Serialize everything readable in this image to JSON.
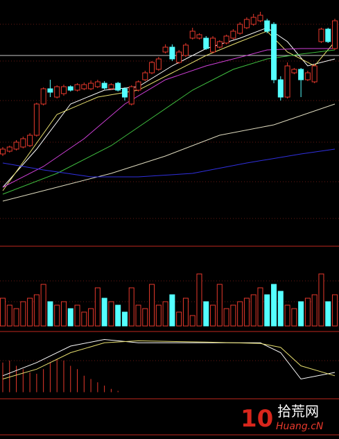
{
  "chart_data": {
    "type": "candlestick",
    "ylim": [
      0,
      360
    ],
    "up_color": "#e8392c",
    "down_color": "#54ffff",
    "open": [
      138,
      142,
      145,
      148,
      150,
      165,
      210,
      232,
      220,
      225,
      235,
      230,
      232,
      232,
      235,
      240,
      232,
      240,
      232,
      210,
      230,
      245,
      255,
      260,
      285,
      292,
      270,
      280,
      305,
      305,
      305,
      285,
      292,
      298,
      305,
      312,
      320,
      325,
      330,
      330,
      325,
      245,
      220,
      255,
      260,
      245,
      242,
      300,
      318,
      290
    ],
    "close": [
      145,
      148,
      155,
      160,
      165,
      210,
      232,
      227,
      235,
      235,
      230,
      238,
      238,
      240,
      242,
      233,
      238,
      230,
      220,
      235,
      242,
      255,
      270,
      275,
      292,
      275,
      285,
      295,
      315,
      310,
      290,
      305,
      300,
      308,
      315,
      325,
      332,
      335,
      338,
      315,
      245,
      220,
      265,
      260,
      245,
      255,
      265,
      318,
      300,
      330
    ],
    "high": [
      148,
      150,
      158,
      163,
      168,
      212,
      234,
      245,
      237,
      238,
      237,
      240,
      241,
      244,
      245,
      243,
      240,
      242,
      234,
      237,
      244,
      258,
      272,
      278,
      296,
      296,
      288,
      298,
      320,
      312,
      308,
      308,
      302,
      310,
      318,
      328,
      335,
      340,
      343,
      333,
      328,
      250,
      270,
      262,
      262,
      258,
      268,
      320,
      320,
      333
    ],
    "low": [
      135,
      140,
      143,
      146,
      148,
      163,
      208,
      220,
      218,
      222,
      228,
      228,
      230,
      230,
      233,
      231,
      230,
      228,
      215,
      208,
      228,
      243,
      253,
      258,
      283,
      272,
      268,
      278,
      303,
      303,
      288,
      283,
      290,
      296,
      303,
      310,
      318,
      323,
      328,
      312,
      240,
      215,
      218,
      253,
      220,
      243,
      240,
      298,
      298,
      288
    ],
    "hline": 280,
    "moving_averages": [
      {
        "color": "#ffffff",
        "x": [
          0,
          5,
          10,
          15,
          20,
          25,
          30,
          35,
          39,
          42,
          45,
          49
        ],
        "values": [
          90,
          145,
          210,
          230,
          235,
          265,
          290,
          305,
          320,
          300,
          265,
          275
        ]
      },
      {
        "color": "#e8e070",
        "x": [
          0,
          8,
          14,
          20,
          25,
          30,
          35,
          39,
          42,
          46,
          49
        ],
        "values": [
          85,
          195,
          220,
          230,
          255,
          280,
          300,
          315,
          285,
          265,
          300
        ]
      },
      {
        "color": "#d040d8",
        "x": [
          0,
          6,
          12,
          18,
          24,
          30,
          36,
          39,
          44,
          49
        ],
        "values": [
          90,
          120,
          160,
          210,
          245,
          265,
          280,
          288,
          290,
          290
        ]
      },
      {
        "color": "#40c040",
        "x": [
          0,
          8,
          16,
          22,
          28,
          34,
          39,
          44,
          49
        ],
        "values": [
          80,
          110,
          150,
          190,
          230,
          260,
          275,
          282,
          288
        ]
      },
      {
        "color": "#e0dcc0",
        "x": [
          0,
          8,
          16,
          24,
          32,
          40,
          46,
          49
        ],
        "values": [
          70,
          90,
          110,
          135,
          165,
          180,
          200,
          210
        ]
      },
      {
        "color": "#3030e0",
        "x": [
          0,
          6,
          13,
          20,
          28,
          36,
          44,
          49
        ],
        "values": [
          125,
          115,
          105,
          105,
          110,
          125,
          138,
          145
        ]
      }
    ],
    "volume_ylim": [
      0,
      80
    ],
    "volume": [
      40,
      30,
      25,
      35,
      40,
      45,
      60,
      35,
      30,
      35,
      25,
      30,
      20,
      25,
      55,
      40,
      35,
      30,
      20,
      55,
      30,
      25,
      60,
      30,
      35,
      45,
      20,
      40,
      15,
      75,
      35,
      30,
      60,
      25,
      30,
      35,
      40,
      45,
      55,
      45,
      60,
      50,
      30,
      25,
      35,
      40,
      45,
      75,
      35,
      45
    ],
    "macd_ylim": [
      -10,
      90
    ],
    "macd_hist": [
      45,
      48,
      40,
      35,
      30,
      28,
      35,
      45,
      50,
      48,
      40,
      35,
      25,
      20,
      15,
      10,
      5,
      2
    ],
    "macd_lines": [
      {
        "color": "#ffffff",
        "x": [
          0,
          5,
          10,
          15,
          20,
          30,
          38,
          41,
          44,
          49
        ],
        "values": [
          25,
          45,
          70,
          80,
          75,
          75,
          75,
          60,
          20,
          30
        ]
      },
      {
        "color": "#e8e070",
        "x": [
          0,
          5,
          10,
          15,
          20,
          30,
          38,
          41,
          44,
          49
        ],
        "values": [
          20,
          35,
          60,
          75,
          78,
          76,
          74,
          68,
          40,
          25
        ]
      }
    ],
    "watermark": {
      "number": "10",
      "site": "拾荒网",
      "domain": "Huang.cN"
    }
  }
}
